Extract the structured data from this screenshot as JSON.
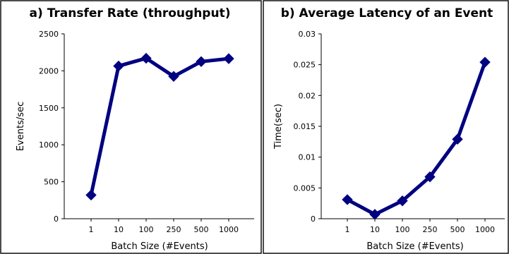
{
  "chart_data": [
    {
      "type": "line",
      "title": "a) Transfer Rate (throughput)",
      "xlabel": "Batch Size (#Events)",
      "ylabel": "Events/sec",
      "categories": [
        "1",
        "10",
        "100",
        "250",
        "500",
        "1000"
      ],
      "y_ticks": [
        "0",
        "500",
        "1000",
        "1500",
        "2000",
        "2500"
      ],
      "ylim": [
        0,
        2500
      ],
      "grid": false,
      "series": [
        {
          "values": [
            320,
            2065,
            2170,
            1925,
            2125,
            2165
          ]
        }
      ],
      "color": "#000080",
      "marker": "diamond"
    },
    {
      "type": "line",
      "title": "b) Average Latency of an Event",
      "xlabel": "Batch Size (#Events)",
      "ylabel": "Time(sec)",
      "categories": [
        "1",
        "10",
        "100",
        "250",
        "500",
        "1000"
      ],
      "y_ticks": [
        "0",
        "0.005",
        "0.01",
        "0.015",
        "0.02",
        "0.025",
        "0.03"
      ],
      "ylim": [
        0,
        0.03
      ],
      "grid": false,
      "series": [
        {
          "values": [
            0.0031,
            0.0007,
            0.0029,
            0.0068,
            0.0129,
            0.0254
          ]
        }
      ],
      "color": "#000080",
      "marker": "diamond"
    }
  ]
}
